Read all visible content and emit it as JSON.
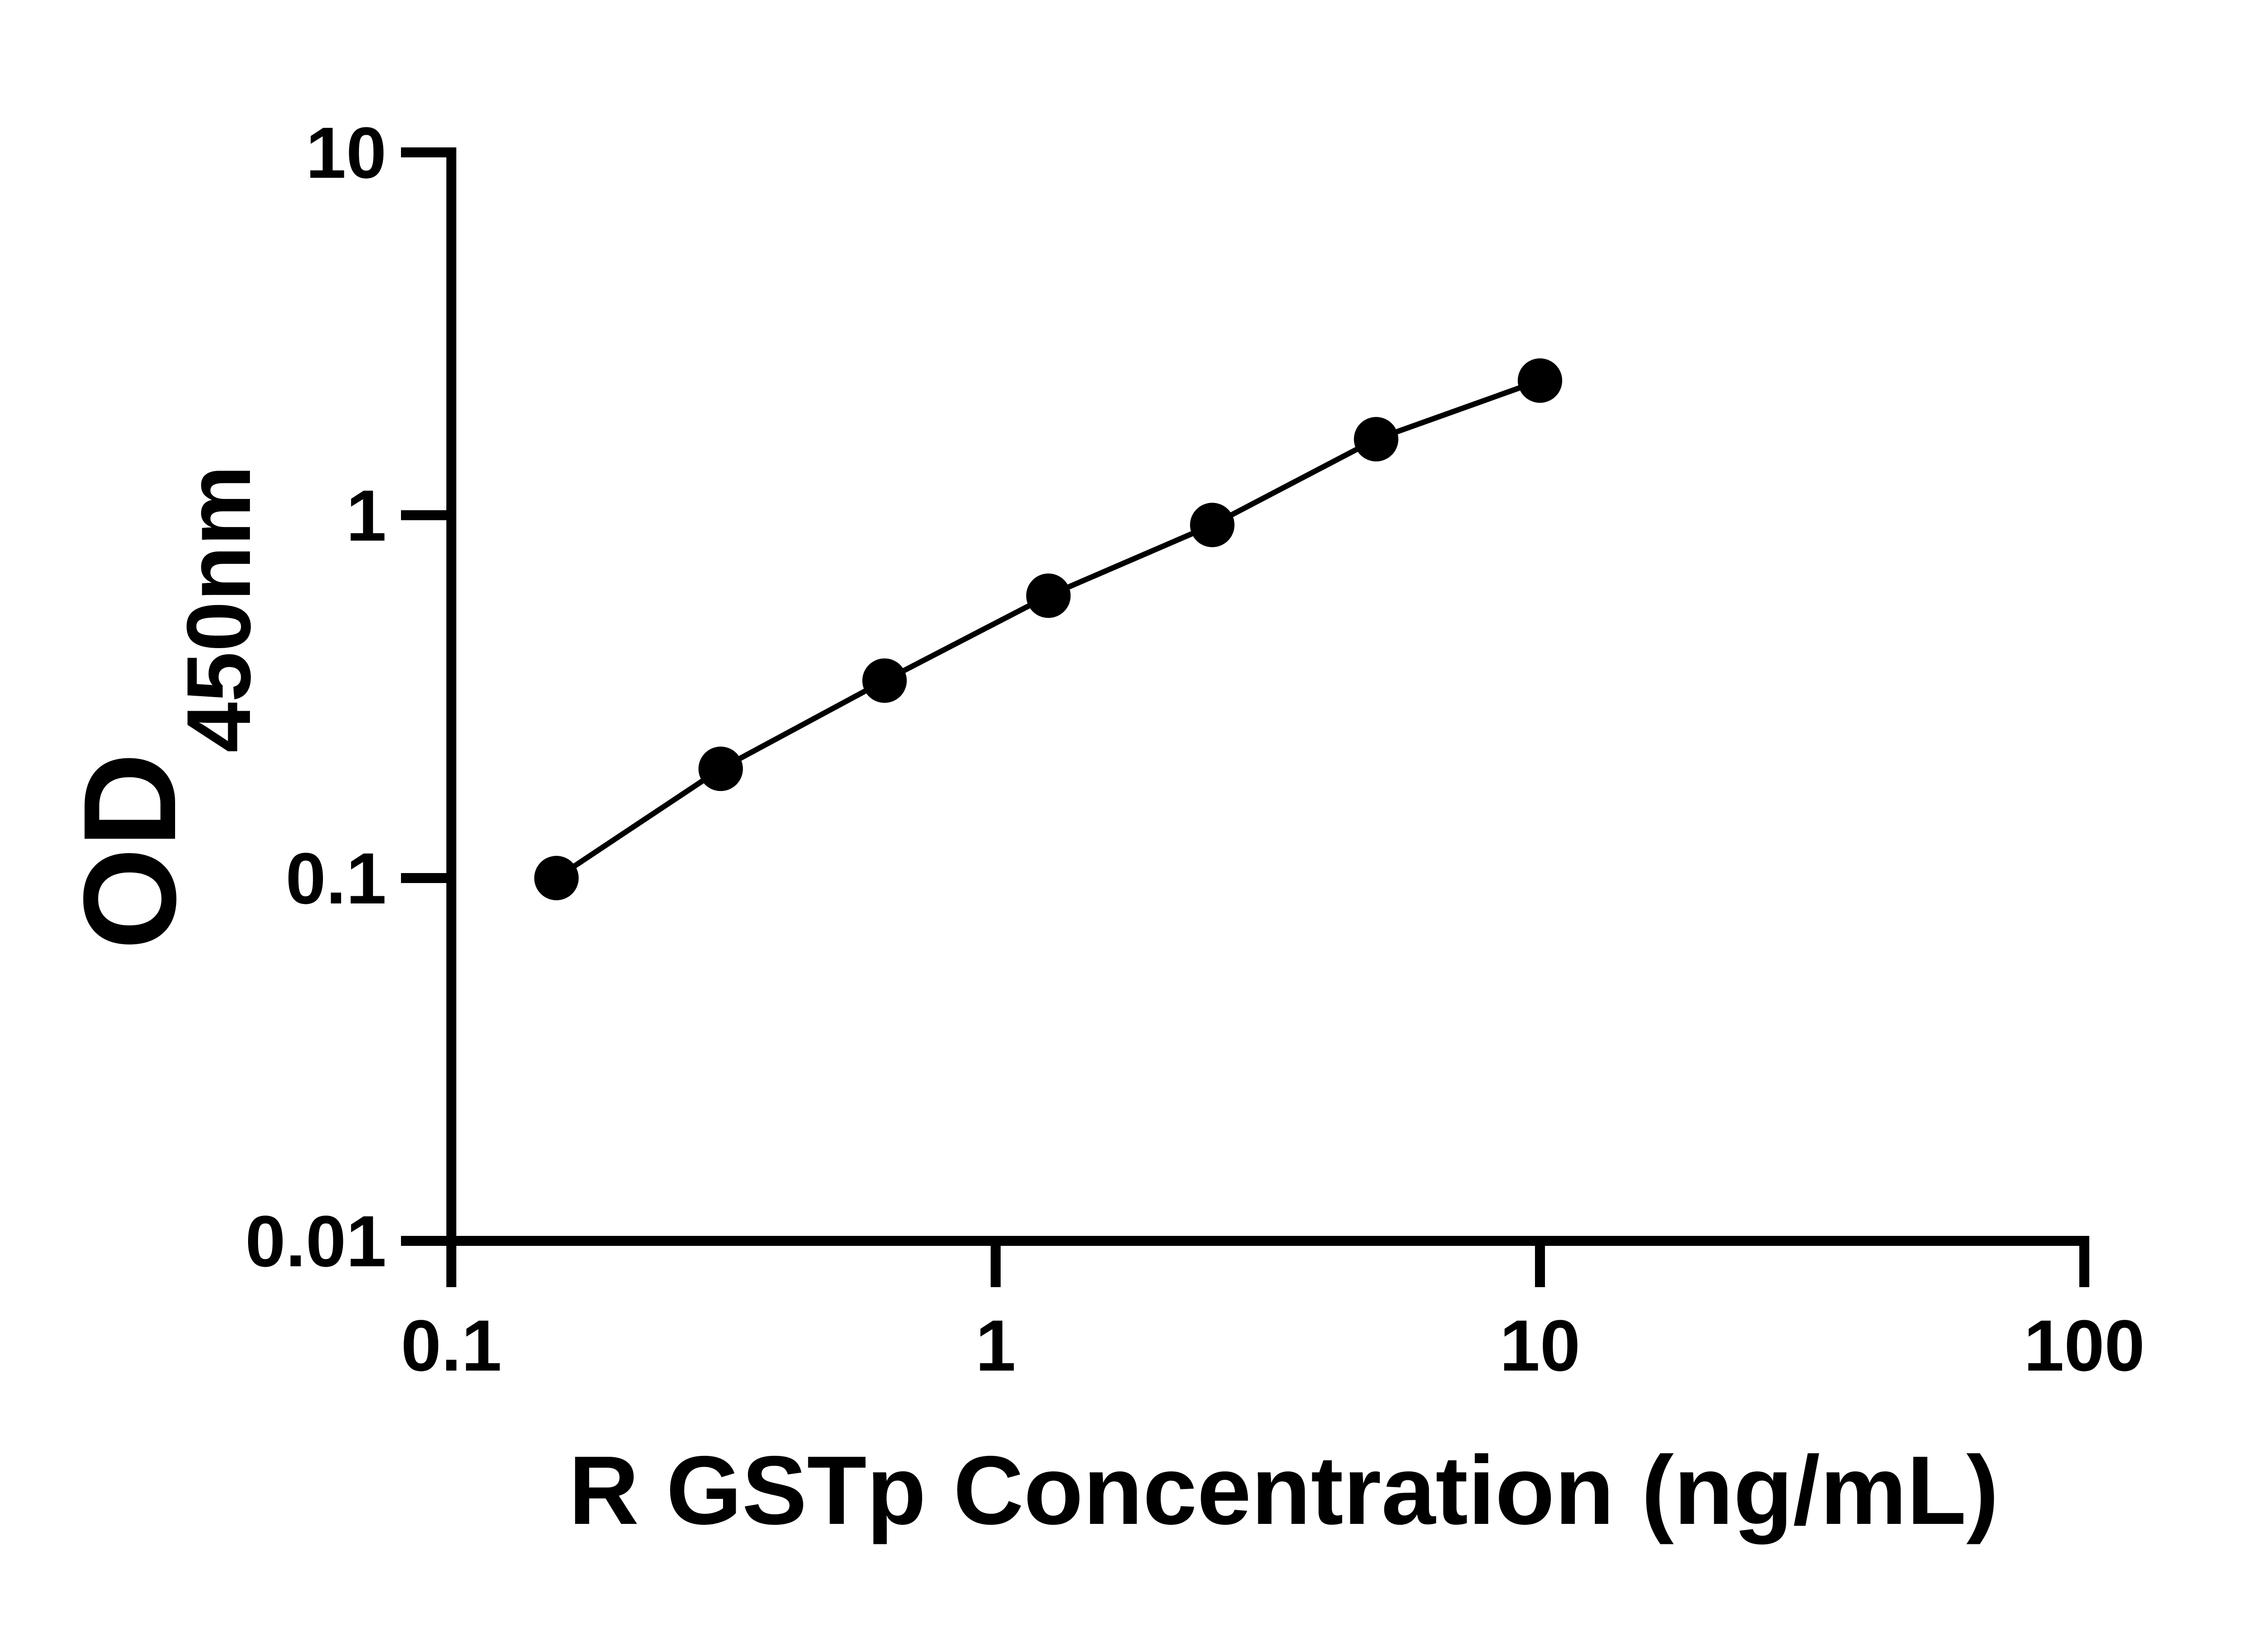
{
  "figure": {
    "background": "#ffffff",
    "ink": "#000000"
  },
  "chart_data": {
    "type": "line",
    "subtype": "scatter-with-connecting-line",
    "title": "",
    "xlabel": "R GSTp Concentration (ng/mL)",
    "ylabel_main": "OD",
    "ylabel_sub": "450nm",
    "x_scale": "log",
    "y_scale": "log",
    "xlim": [
      0.1,
      100
    ],
    "ylim": [
      0.01,
      10
    ],
    "x": [
      0.156,
      0.3125,
      0.625,
      1.25,
      2.5,
      5,
      10
    ],
    "y": [
      0.1,
      0.2,
      0.35,
      0.6,
      0.94,
      1.62,
      2.35
    ],
    "x_tick_values": [
      0.1,
      1,
      10,
      100
    ],
    "x_tick_labels": [
      "0.1",
      "1",
      "10",
      "100"
    ],
    "y_tick_values": [
      10,
      1,
      0.1,
      0.01
    ],
    "y_tick_labels": [
      "10",
      "1",
      "0.1",
      "0.01"
    ],
    "grid": false,
    "legend": null,
    "marker": "filled-circle",
    "line_color": "#000000",
    "marker_color": "#000000"
  }
}
